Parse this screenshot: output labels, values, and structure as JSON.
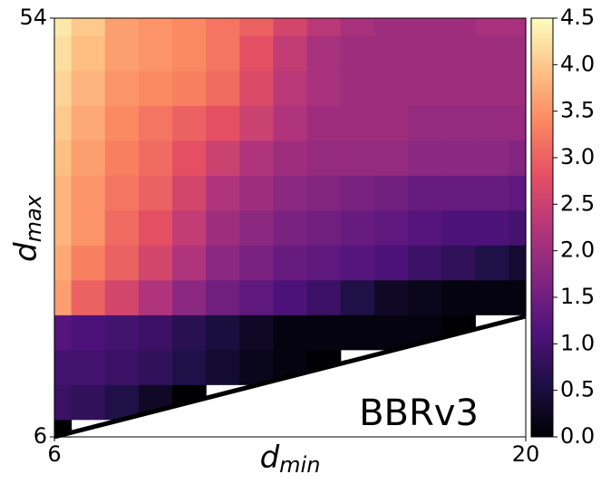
{
  "chart_data": {
    "type": "heatmap",
    "annotation": "BBRv3",
    "xlabel": {
      "main": "d",
      "sub": "min"
    },
    "ylabel": {
      "main": "d",
      "sub": "max"
    },
    "x": [
      6,
      7,
      8,
      9,
      10,
      11,
      12,
      13,
      14,
      15,
      16,
      17,
      18,
      19,
      20
    ],
    "y": [
      6,
      10,
      14,
      18,
      22,
      26,
      30,
      34,
      38,
      42,
      46,
      50,
      54
    ],
    "z": [
      [
        0.0,
        null,
        null,
        null,
        null,
        null,
        null,
        null,
        null,
        null,
        null,
        null,
        null,
        null,
        null
      ],
      [
        0.9,
        0.8,
        0.6,
        0.3,
        0.0,
        null,
        null,
        null,
        null,
        null,
        null,
        null,
        null,
        null,
        null
      ],
      [
        1.0,
        1.0,
        0.9,
        0.8,
        0.6,
        0.4,
        0.2,
        0.1,
        0.0,
        null,
        null,
        null,
        null,
        null,
        null
      ],
      [
        1.2,
        1.1,
        1.0,
        0.9,
        0.7,
        0.5,
        0.3,
        0.1,
        0.1,
        0.1,
        0.1,
        0.1,
        0.0,
        null,
        null
      ],
      [
        3.6,
        3.0,
        2.6,
        2.2,
        1.8,
        1.5,
        1.3,
        1.1,
        0.9,
        0.6,
        0.3,
        0.2,
        0.1,
        0.1,
        0.1
      ],
      [
        3.7,
        3.3,
        3.0,
        2.6,
        2.2,
        1.8,
        1.6,
        1.4,
        1.3,
        1.2,
        1.1,
        0.9,
        0.8,
        0.6,
        0.4
      ],
      [
        3.8,
        3.5,
        3.1,
        2.8,
        2.4,
        2.0,
        1.8,
        1.6,
        1.5,
        1.4,
        1.3,
        1.2,
        1.1,
        1.1,
        1.0
      ],
      [
        3.8,
        3.5,
        3.2,
        3.0,
        2.6,
        2.2,
        2.0,
        1.8,
        1.7,
        1.6,
        1.5,
        1.4,
        1.4,
        1.4,
        1.3
      ],
      [
        3.9,
        3.6,
        3.3,
        3.1,
        2.8,
        2.5,
        2.2,
        2.0,
        1.9,
        1.9,
        1.9,
        1.8,
        1.8,
        1.8,
        1.7
      ],
      [
        4.0,
        3.7,
        3.4,
        3.2,
        3.0,
        2.8,
        2.5,
        2.2,
        2.0,
        2.0,
        2.0,
        1.9,
        1.9,
        1.9,
        1.9
      ],
      [
        4.1,
        3.8,
        3.5,
        3.4,
        3.3,
        3.1,
        2.7,
        2.3,
        2.1,
        2.0,
        2.0,
        2.0,
        2.0,
        2.0,
        2.0
      ],
      [
        4.2,
        3.9,
        3.6,
        3.5,
        3.4,
        3.2,
        2.8,
        2.4,
        2.1,
        2.0,
        2.0,
        2.0,
        2.0,
        2.0,
        2.0
      ],
      [
        4.3,
        4.0,
        3.6,
        3.5,
        3.4,
        3.2,
        3.0,
        2.6,
        2.3,
        2.1,
        2.0,
        2.0,
        2.0,
        2.1,
        2.1
      ]
    ],
    "xlim": [
      6,
      20
    ],
    "xticks": [
      6,
      20
    ],
    "ylim": [
      6,
      54
    ],
    "yticks": [
      6,
      54
    ],
    "colormap": "magma",
    "clim": [
      0,
      4.5
    ],
    "cticks": [
      {
        "value": 0,
        "label": "0.0"
      },
      0.5,
      {
        "value": 1,
        "label": "1.0"
      },
      1.5,
      {
        "value": 2,
        "label": "2.0"
      },
      2.5,
      {
        "value": 3,
        "label": "3.0"
      },
      3.5,
      {
        "value": 4,
        "label": "4.0"
      },
      4.5
    ]
  }
}
